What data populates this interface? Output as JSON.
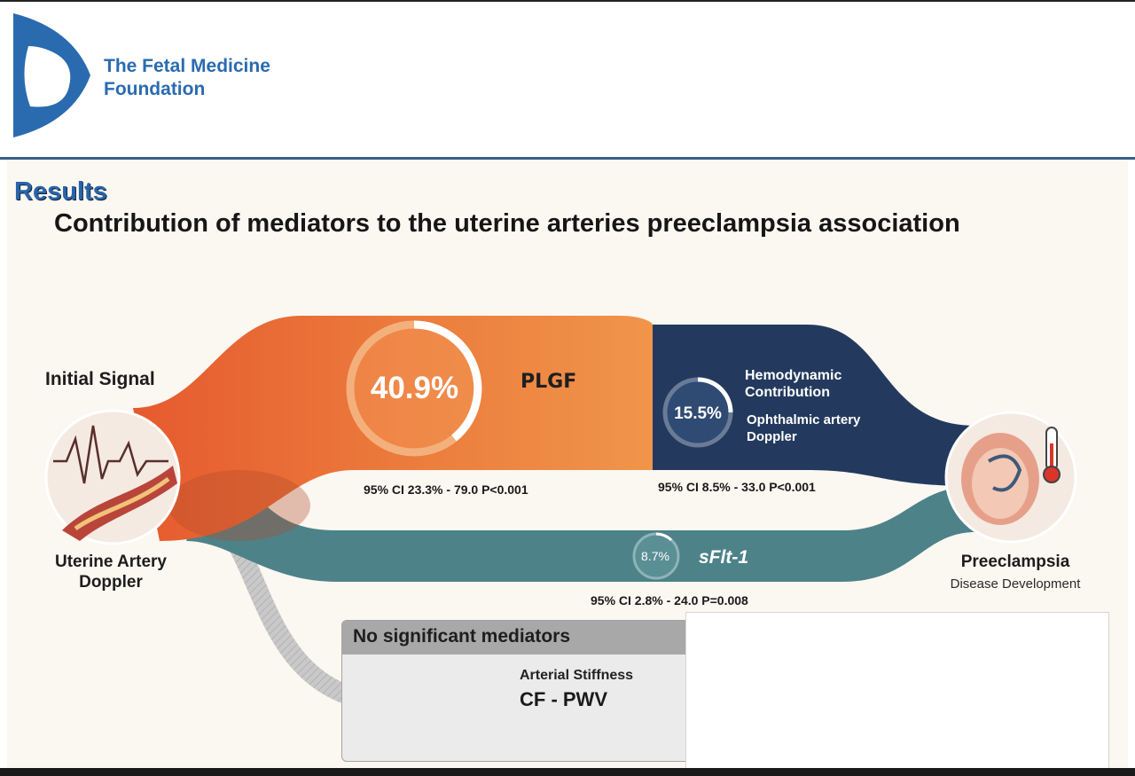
{
  "header": {
    "organization": "The Fetal Medicine\nFoundation",
    "logo": "fmf-logo",
    "brand_color": "#2a6bb0"
  },
  "slide": {
    "section": "Results",
    "title": "Contribution of mediators to the uterine arteries preeclampsia association",
    "source": {
      "label": "Initial Signal",
      "name": "Uterine Artery\nDoppler",
      "icon": "doppler-waveform-artery-icon"
    },
    "target": {
      "name": "Preeclampsia",
      "sub": "Disease Development",
      "icon": "fetus-thermometer-icon"
    },
    "mediators": [
      {
        "name": "PLGF",
        "percent": "40.9%",
        "value": 40.9,
        "ci": "95% CI 23.3% - 79.0 P<0.001",
        "color": "#e8733a"
      },
      {
        "name": "Ophthalmic artery\nDoppler",
        "group": "Hemodynamic\nContribution",
        "percent": "15.5%",
        "value": 15.5,
        "ci": "95% CI 8.5% - 33.0 P<0.001",
        "color": "#233a5e"
      },
      {
        "name": "sFlt-1",
        "percent": "8.7%",
        "value": 8.7,
        "ci": "95% CI 2.8% - 24.0 P=0.008",
        "color": "#4d8289"
      }
    ],
    "no_significant": {
      "title": "No significant mediators",
      "category": "Arterial Stiffness",
      "name": "CF - PWV",
      "icon": "x-circle-icon"
    }
  }
}
